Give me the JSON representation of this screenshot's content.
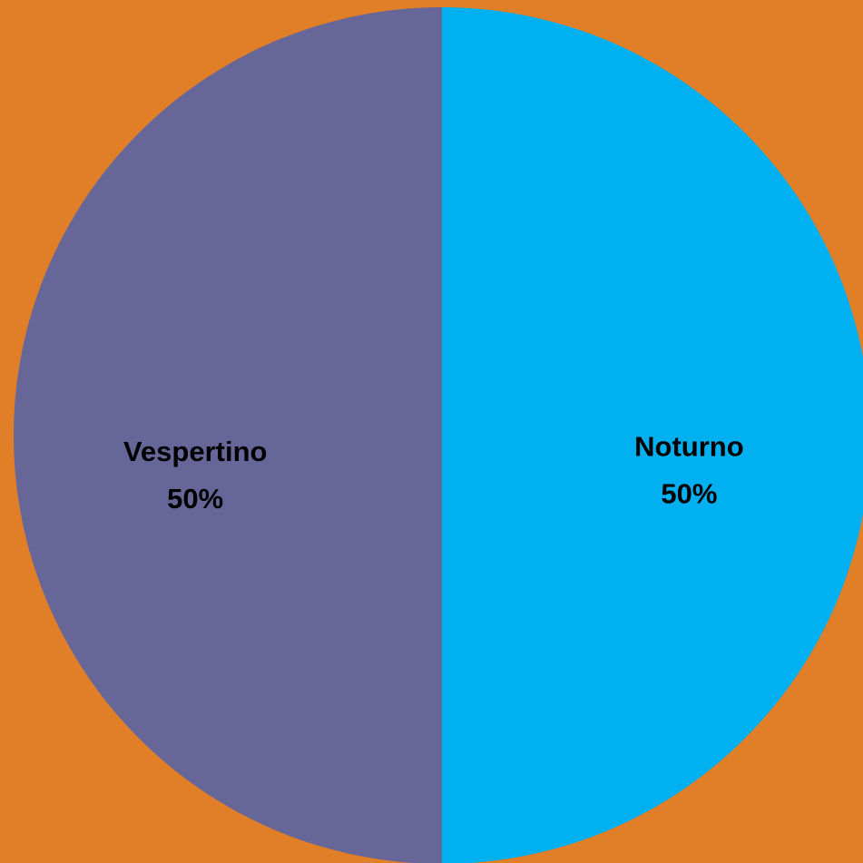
{
  "chart_data": {
    "type": "pie",
    "start_angle_deg": 0,
    "direction": "clockwise",
    "slices": [
      {
        "label": "Noturno",
        "value": 50,
        "percent_label": "50%",
        "color": "#00B0F0"
      },
      {
        "label": "Vespertino",
        "value": 50,
        "percent_label": "50%",
        "color": "#666699"
      }
    ],
    "background_color": "#E07F28",
    "legend": "none",
    "data_labels": "inside"
  }
}
